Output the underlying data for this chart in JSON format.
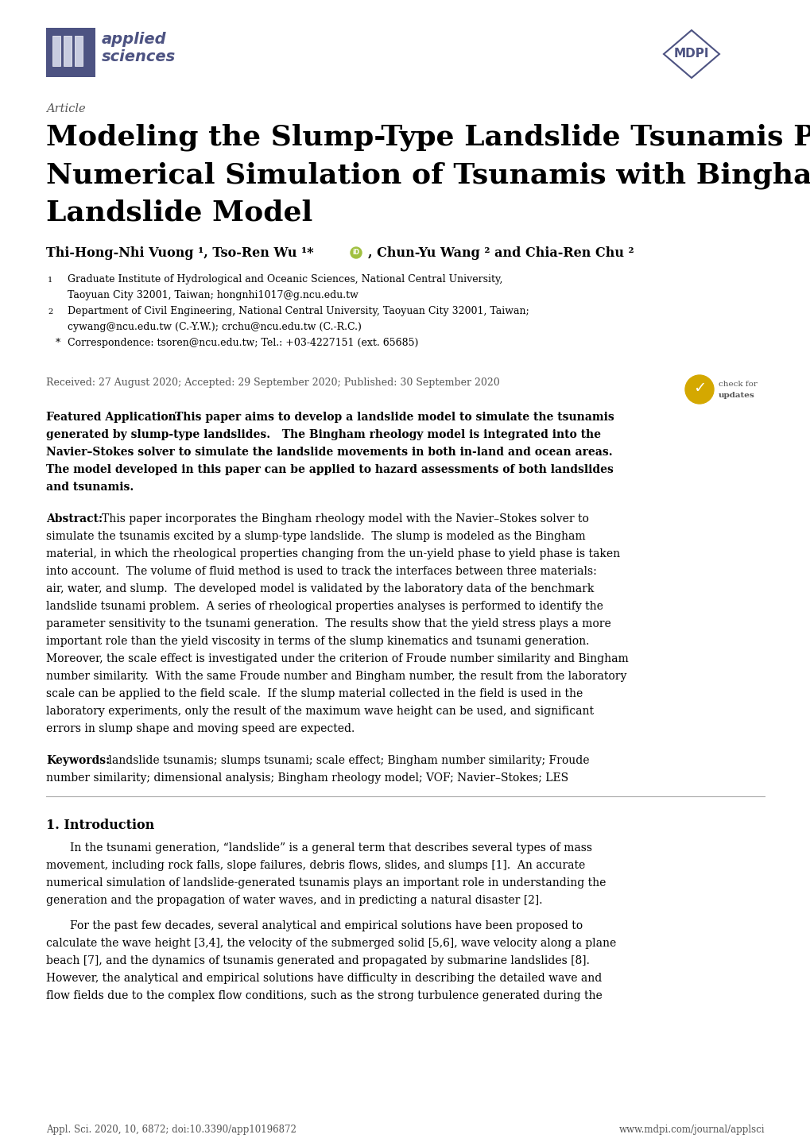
{
  "title_line1": "Modeling the Slump-Type Landslide Tsunamis Part II:",
  "title_line2": "Numerical Simulation of Tsunamis with Bingham",
  "title_line3": "Landslide Model",
  "article_label": "Article",
  "authors": "Thi-Hong-Nhi Vuong ¹, Tso-Ren Wu ¹*●, Chun-Yu Wang ² and Chia-Ren Chu ²",
  "affil1a": "Graduate Institute of Hydrological and Oceanic Sciences, National Central University,",
  "affil1b": "Taoyuan City 32001, Taiwan; hongnhi1017@g.ncu.edu.tw",
  "affil2a": "Department of Civil Engineering, National Central University, Taoyuan City 32001, Taiwan;",
  "affil2b": "cywang@ncu.edu.tw (C.-Y.W.); crchu@ncu.edu.tw (C.-R.C.)",
  "affil_star": "Correspondence: tsoren@ncu.edu.tw; Tel.: +03-4227151 (ext. 65685)",
  "received": "Received: 27 August 2020; Accepted: 29 September 2020; Published: 30 September 2020",
  "footer_left": "Appl. Sci. 2020, 10, 6872; doi:10.3390/app10196872",
  "footer_right": "www.mdpi.com/journal/applsci",
  "bg_color": "#ffffff",
  "text_color": "#000000",
  "logo_color": "#4d5382",
  "logo_text_color": "#4d5382",
  "gray_text": "#555555"
}
